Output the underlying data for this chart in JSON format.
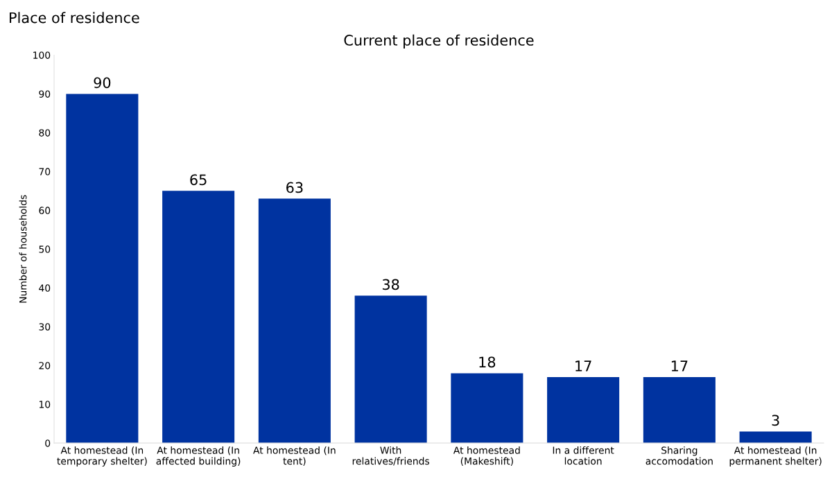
{
  "chart_data": {
    "type": "bar",
    "title": "Current place of residence",
    "subtitle": "Place of residence",
    "ylabel": "Number of households",
    "categories": [
      "At homestead (In temporary shelter)",
      "At homestead (In affected building)",
      "At homestead (In tent)",
      "With relatives/friends",
      "At homestead (Makeshift)",
      "In a different location",
      "Sharing accomodation",
      "At homestead (In permanent shelter)"
    ],
    "values": [
      90,
      65,
      63,
      38,
      18,
      17,
      17,
      3
    ],
    "color": "#0033a0",
    "ylim": [
      0,
      100
    ],
    "yticks": [
      0,
      10,
      20,
      30,
      40,
      50,
      60,
      70,
      80,
      90,
      100
    ],
    "data_labels": true,
    "grid": false,
    "legend": false
  }
}
